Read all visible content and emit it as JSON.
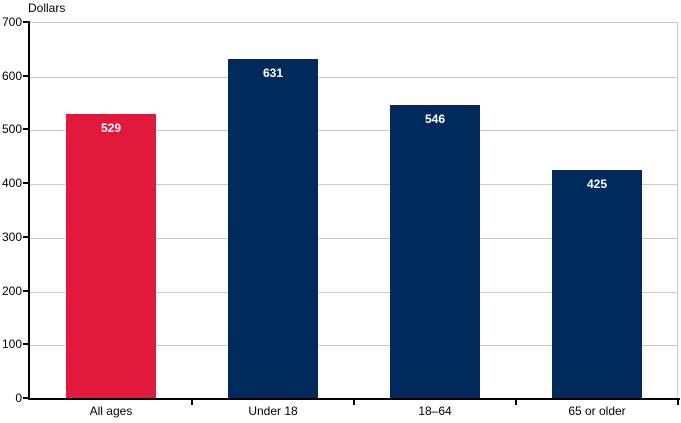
{
  "chart_data": {
    "type": "bar",
    "title": "",
    "ylabel": "Dollars",
    "xlabel": "",
    "categories": [
      "All ages",
      "Under 18",
      "18–64",
      "65 or older"
    ],
    "values": [
      529,
      631,
      546,
      425
    ],
    "value_labels": [
      "529",
      "631",
      "546",
      "425"
    ],
    "bar_colors": [
      "#e2193c",
      "#002a5c",
      "#002a5c",
      "#002a5c"
    ],
    "highlighted_category": "All ages",
    "ylim": [
      0,
      700
    ],
    "ytick_interval": 100,
    "yticks": [
      0,
      100,
      200,
      300,
      400,
      500,
      600,
      700
    ],
    "grid": true,
    "legend": null
  },
  "colors": {
    "highlight": "#e2193c",
    "series": "#002a5c",
    "gridline": "#c9c9c9",
    "axis": "#000000",
    "value_label_text": "#ffffff",
    "tick_label_text": "#000000",
    "background": "#ffffff"
  }
}
